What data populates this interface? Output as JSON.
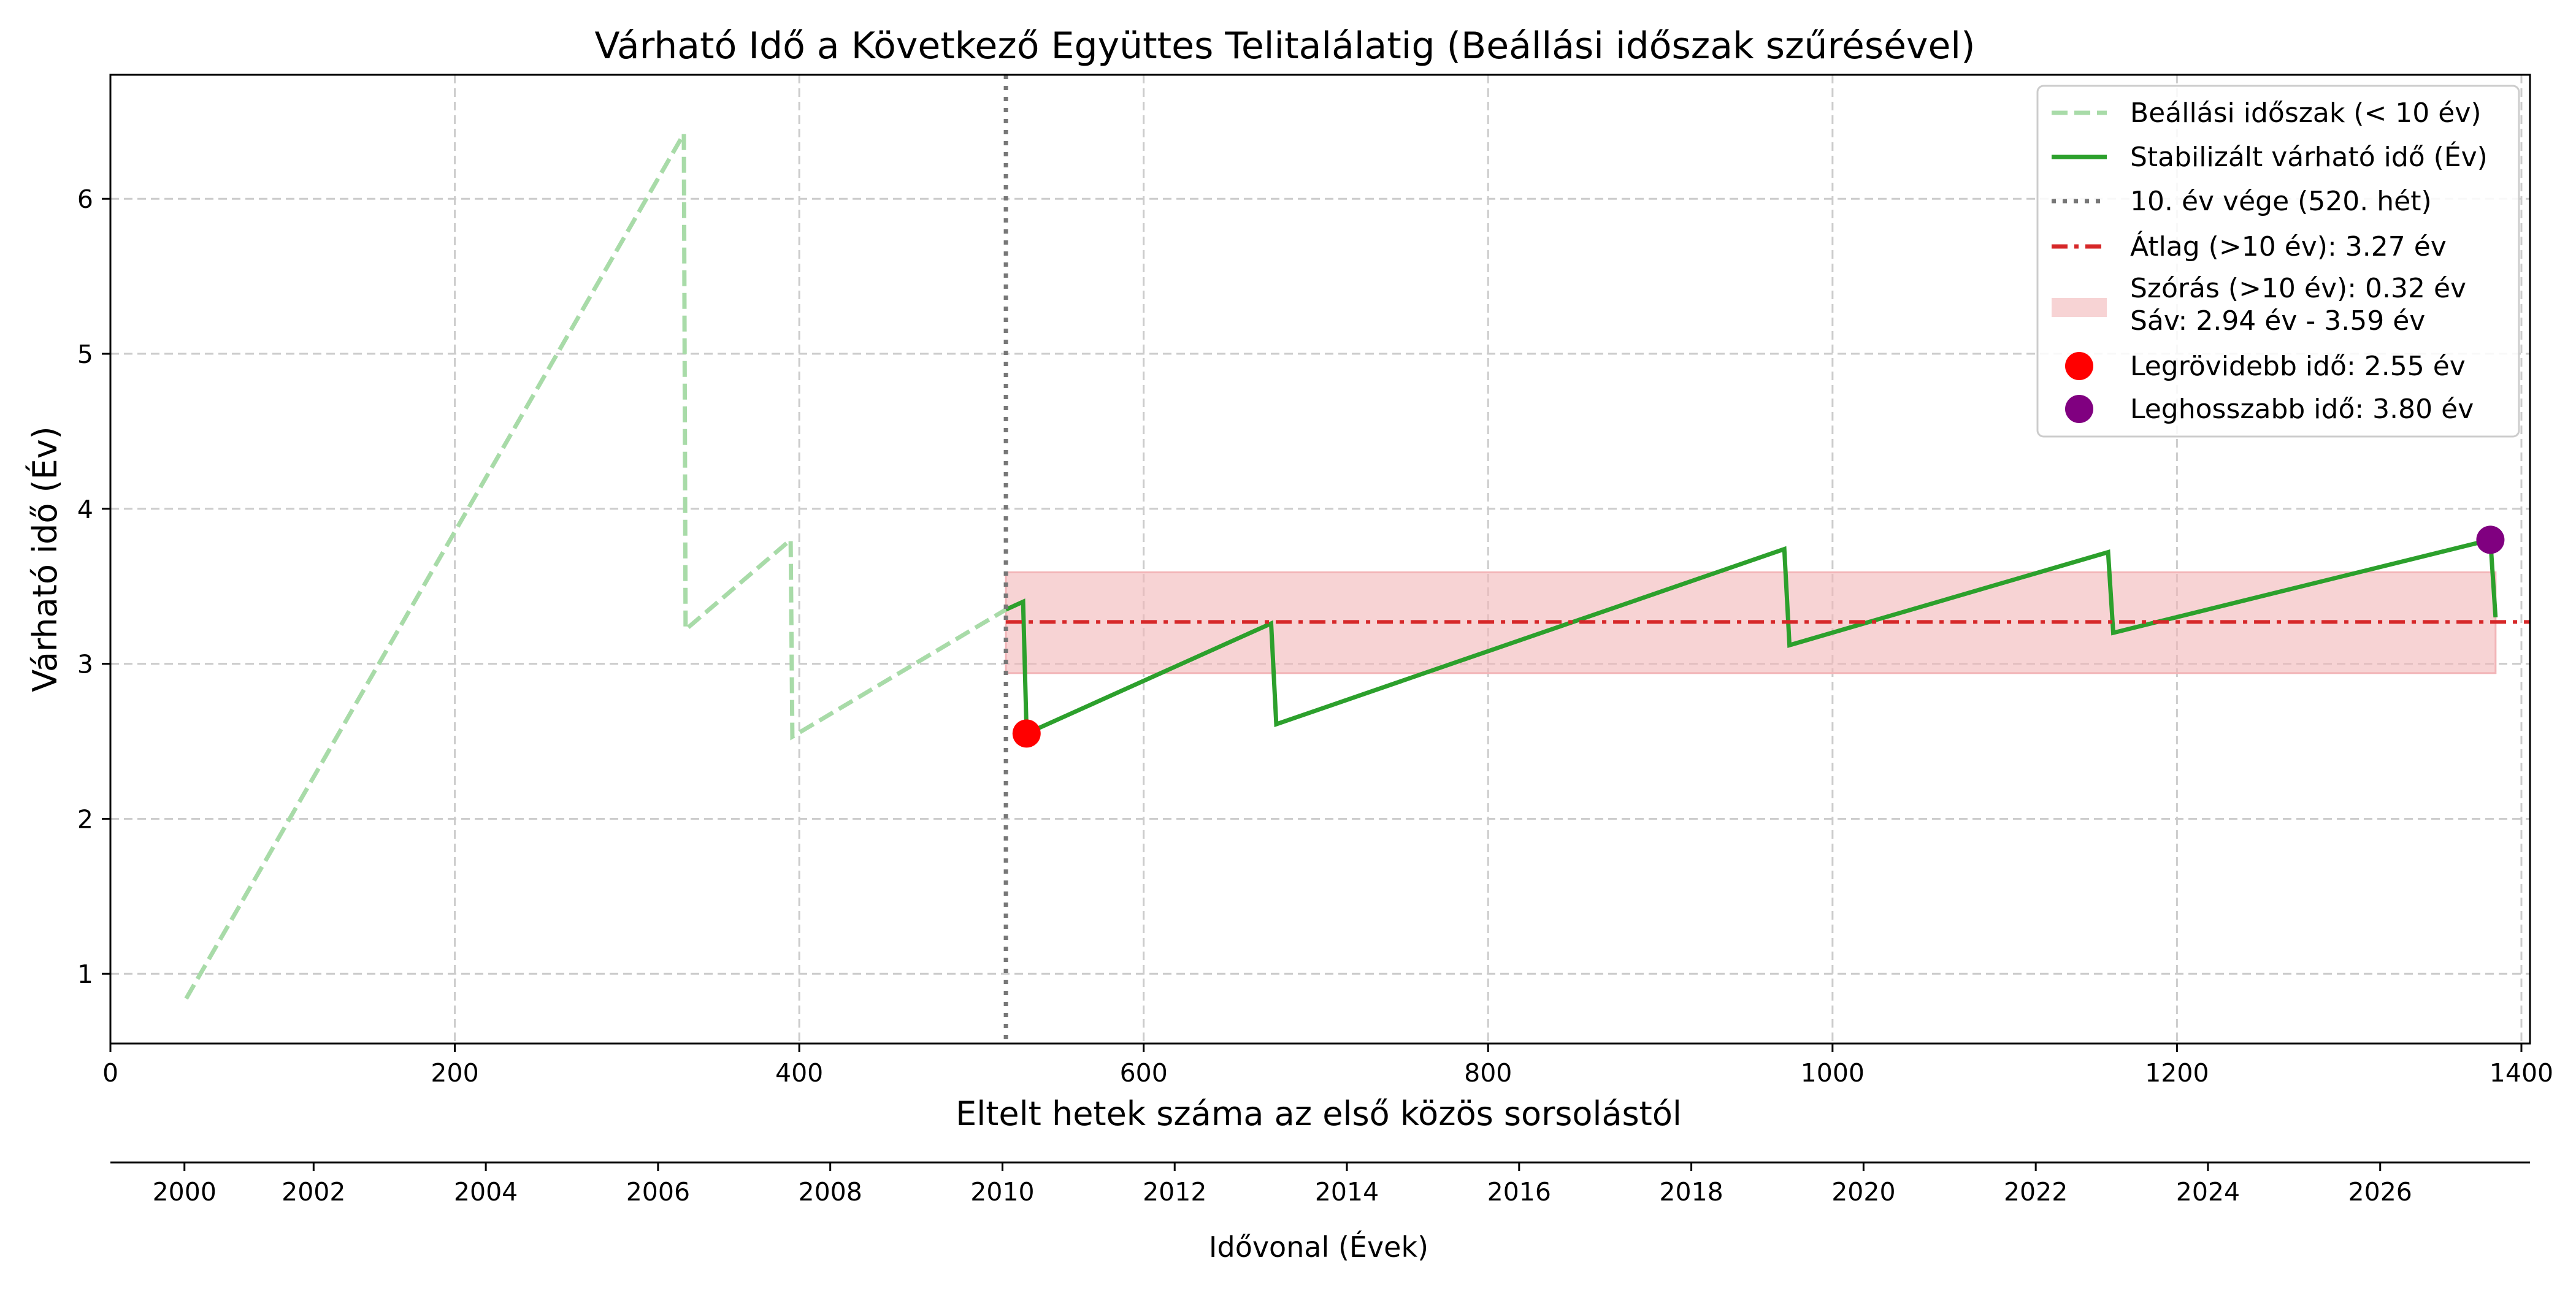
{
  "chart_data": {
    "type": "line",
    "title": "Várható Idő a Következő Együttes Telitalálatig (Beállási időszak szűrésével)",
    "xlabel": "Eltelt hetek száma az első közös sorsolástól",
    "ylabel": "Várható idő (Év)",
    "secondary_xlabel": "Idővonal (Évek)",
    "xlim": [
      0,
      1405
    ],
    "ylim": [
      0.55,
      6.8
    ],
    "xticks": [
      0,
      200,
      400,
      600,
      800,
      1000,
      1200,
      1400
    ],
    "yticks": [
      1,
      2,
      3,
      4,
      5,
      6
    ],
    "secondary_xticks": [
      {
        "x": 43,
        "label": "2000"
      },
      {
        "x": 118,
        "label": "2002"
      },
      {
        "x": 218,
        "label": "2004"
      },
      {
        "x": 318,
        "label": "2006"
      },
      {
        "x": 418,
        "label": "2008"
      },
      {
        "x": 518,
        "label": "2010"
      },
      {
        "x": 618,
        "label": "2012"
      },
      {
        "x": 718,
        "label": "2014"
      },
      {
        "x": 818,
        "label": "2016"
      },
      {
        "x": 918,
        "label": "2018"
      },
      {
        "x": 1018,
        "label": "2020"
      },
      {
        "x": 1118,
        "label": "2022"
      },
      {
        "x": 1218,
        "label": "2024"
      },
      {
        "x": 1318,
        "label": "2026"
      }
    ],
    "grid": true,
    "legend_position": "upper right",
    "series": [
      {
        "name": "Beállási időszak (< 10 év)",
        "style": "dashed",
        "color": "#a8dba8",
        "points": [
          [
            44,
            0.84
          ],
          [
            333,
            6.42
          ],
          [
            334,
            3.22
          ],
          [
            395,
            3.8
          ],
          [
            396,
            2.53
          ],
          [
            520,
            3.35
          ]
        ]
      },
      {
        "name": "Stabilizált várható idő (Év)",
        "style": "solid",
        "color": "#2ca02c",
        "points": [
          [
            520,
            3.35
          ],
          [
            530,
            3.4
          ],
          [
            532,
            2.55
          ],
          [
            674,
            3.26
          ],
          [
            677,
            2.61
          ],
          [
            972,
            3.74
          ],
          [
            975,
            3.12
          ],
          [
            1160,
            3.72
          ],
          [
            1163,
            3.2
          ],
          [
            1382,
            3.8
          ],
          [
            1385,
            3.3
          ]
        ]
      }
    ],
    "vertical_line": {
      "x": 520,
      "label": "10. év vége (520. hét)",
      "color": "#777777",
      "style": "dotted"
    },
    "mean_line": {
      "y": 3.27,
      "x_start": 520,
      "label": "Átlag (>10 év): 3.27 év",
      "color": "#d62728",
      "style": "dashdot"
    },
    "std_band": {
      "y_low": 2.94,
      "y_high": 3.59,
      "x_start": 520,
      "x_end": 1385,
      "label_line1": "Szórás (>10 év): 0.32 év",
      "label_line2": "Sáv: 2.94 év - 3.59 év",
      "color": "#f2b5b8"
    },
    "min_point": {
      "x": 532,
      "y": 2.55,
      "label": "Legrövidebb idő: 2.55 év",
      "color": "#ff0000"
    },
    "max_point": {
      "x": 1382,
      "y": 3.8,
      "label": "Leghosszabb idő: 3.80 év",
      "color": "#800080"
    }
  }
}
